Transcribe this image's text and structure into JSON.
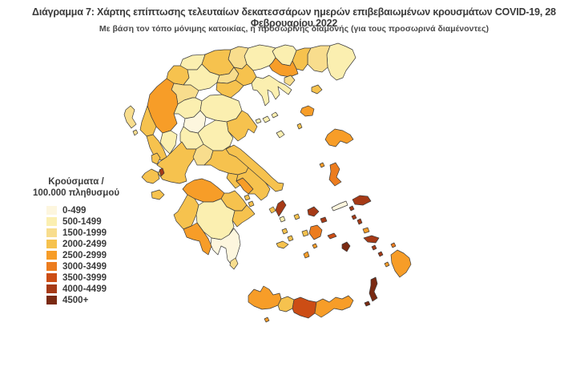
{
  "title": "Διάγραμμα 7: Χάρτης επίπτωσης τελευταίων δεκατεσσάρων ημερών επιβεβαιωμένων κρουσμάτων COVID-19, 28 Φεβρουαρίου 2022",
  "subtitle": "Με βάση τον τόπο μόνιμης κατοικίας, ή προσωρινής διαμονής (για τους προσωρινά διαμένοντες)",
  "legend": {
    "title_line1": "Κρούσματα /",
    "title_line2": "100.000 πληθυσμού",
    "buckets": [
      {
        "label": "0-499",
        "color": "#FDF6DE"
      },
      {
        "label": "500-1499",
        "color": "#FBEFB0"
      },
      {
        "label": "1500-1999",
        "color": "#F8DD8D"
      },
      {
        "label": "2000-2499",
        "color": "#F6C24E"
      },
      {
        "label": "2500-2999",
        "color": "#F79D28"
      },
      {
        "label": "3000-3499",
        "color": "#EC7C1E"
      },
      {
        "label": "3500-3999",
        "color": "#CC4D15"
      },
      {
        "label": "4000-4499",
        "color": "#A63A16"
      },
      {
        "label": "4500+",
        "color": "#7A2A12"
      }
    ]
  },
  "map": {
    "border_color": "#3b3b3b",
    "sea_color": "#ffffff",
    "regions": {
      "evros": {
        "bucket": 1
      },
      "rodopi": {
        "bucket": 2
      },
      "xanthi": {
        "bucket": 3
      },
      "drama": {
        "bucket": 1
      },
      "kavala": {
        "bucket": 4
      },
      "serres": {
        "bucket": 1
      },
      "kilkis": {
        "bucket": 2
      },
      "pella": {
        "bucket": 3
      },
      "florina": {
        "bucket": 1
      },
      "kastoria": {
        "bucket": 3
      },
      "kozani": {
        "bucket": 1
      },
      "imathia": {
        "bucket": 2
      },
      "thessaloniki": {
        "bucket": 3
      },
      "chalkidiki": {
        "bucket": 1
      },
      "pieria": {
        "bucket": 3
      },
      "grevena": {
        "bucket": 2
      },
      "ioannina": {
        "bucket": 4
      },
      "thesprotia": {
        "bucket": 3
      },
      "preveza": {
        "bucket": 3
      },
      "arta": {
        "bucket": 1
      },
      "trikala": {
        "bucket": 1
      },
      "larissa": {
        "bucket": 1
      },
      "karditsa": {
        "bucket": 0
      },
      "magnesia": {
        "bucket": 3
      },
      "fthiotida": {
        "bucket": 1
      },
      "evrytania": {
        "bucket": 1
      },
      "aetolia": {
        "bucket": 3
      },
      "phocis": {
        "bucket": 2
      },
      "boeotia": {
        "bucket": 3
      },
      "attica_west": {
        "bucket": 3
      },
      "athens": {
        "bucket": 4
      },
      "attica_east": {
        "bucket": 3
      },
      "evia": {
        "bucket": 3
      },
      "achaia": {
        "bucket": 4
      },
      "corinthia": {
        "bucket": 3
      },
      "argolida": {
        "bucket": 3
      },
      "ilia": {
        "bucket": 3
      },
      "arcadia": {
        "bucket": 1
      },
      "messinia": {
        "bucket": 4
      },
      "laconia": {
        "bucket": 0
      },
      "chania": {
        "bucket": 4
      },
      "rethymno": {
        "bucket": 3
      },
      "heraklion": {
        "bucket": 6
      },
      "lasithi": {
        "bucket": 4
      },
      "corfu": {
        "bucket": 2
      },
      "paxi": {
        "bucket": 2
      },
      "lefkada": {
        "bucket": 3
      },
      "kefalonia": {
        "bucket": 3
      },
      "ithaca": {
        "bucket": 7
      },
      "zakynthos": {
        "bucket": 3
      },
      "thasos": {
        "bucket": 2
      },
      "samothrace": {
        "bucket": 3
      },
      "limnos": {
        "bucket": 4
      },
      "agios_efstratios": {
        "bucket": 3
      },
      "lesbos": {
        "bucket": 4
      },
      "psara": {
        "bucket": 4
      },
      "chios": {
        "bucket": 5
      },
      "samos": {
        "bucket": 7
      },
      "ikaria": {
        "bucket": 0
      },
      "fourni": {
        "bucket": 7
      },
      "skiathos": {
        "bucket": 1
      },
      "skopelos": {
        "bucket": 1
      },
      "alonnisos": {
        "bucket": 1
      },
      "skyros": {
        "bucket": 1
      },
      "kea": {
        "bucket": 3
      },
      "kythnos": {
        "bucket": 1
      },
      "andros": {
        "bucket": 7
      },
      "tinos": {
        "bucket": 7
      },
      "mykonos": {
        "bucket": 7
      },
      "syros": {
        "bucket": 3
      },
      "serifos": {
        "bucket": 3
      },
      "sifnos": {
        "bucket": 3
      },
      "paros": {
        "bucket": 3
      },
      "naxos": {
        "bucket": 5
      },
      "milos": {
        "bucket": 3
      },
      "ios": {
        "bucket": 4
      },
      "santorini": {
        "bucket": 4
      },
      "amorgos": {
        "bucket": 6
      },
      "astypalea": {
        "bucket": 8
      },
      "patmos": {
        "bucket": 7
      },
      "leros": {
        "bucket": 7
      },
      "kalymnos": {
        "bucket": 4
      },
      "kos": {
        "bucket": 7
      },
      "nisyros": {
        "bucket": 7
      },
      "tilos": {
        "bucket": 7
      },
      "symi": {
        "bucket": 5
      },
      "rhodes": {
        "bucket": 4
      },
      "chalki": {
        "bucket": 4
      },
      "karpathos": {
        "bucket": 8
      },
      "kasos": {
        "bucket": 8
      },
      "kythira": {
        "bucket": 2
      },
      "salamina": {
        "bucket": 3
      },
      "aegina": {
        "bucket": 3
      },
      "gavdos": {
        "bucket": 4
      }
    }
  }
}
